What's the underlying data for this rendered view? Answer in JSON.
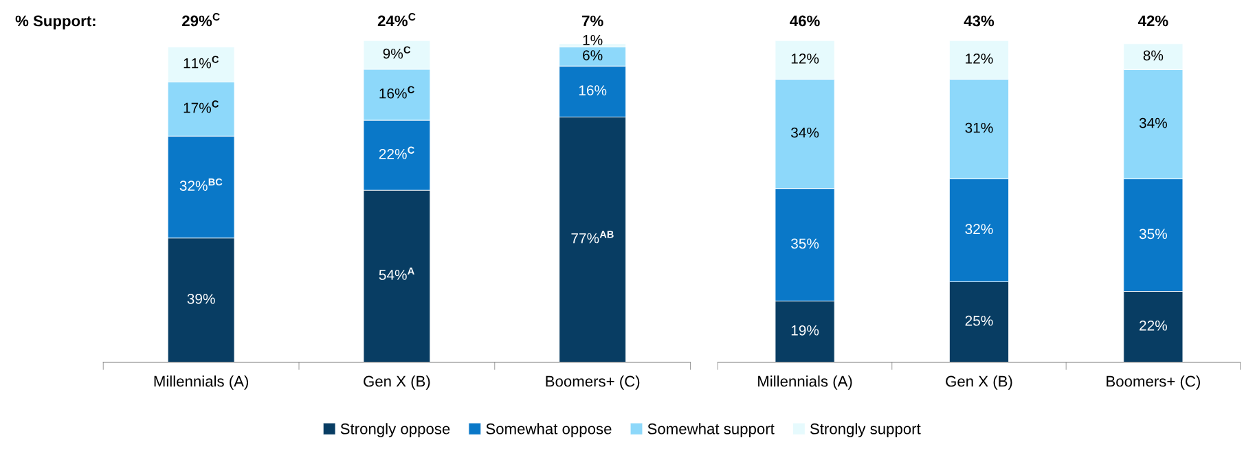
{
  "chart_data": [
    {
      "type": "bar",
      "stacked": true,
      "categories": [
        "Millennials (A)",
        "Gen X (B)",
        "Boomers+ (C)"
      ],
      "tick_labels": "x",
      "legend": "bottom",
      "grid": false,
      "annotations": [
        "% Support:",
        "29%$^{C}$",
        "24%$^{C}$",
        "7%"
      ],
      "series": [
        {
          "name": "Strongly oppose",
          "color": "#083d63",
          "values": [
            39,
            54,
            77
          ],
          "value_labels": [
            "39%",
            "54%$^{A}$",
            "77%$^{AB}$"
          ]
        },
        {
          "name": "Somewhat oppose",
          "color": "#0a78c8",
          "values": [
            32,
            22,
            16
          ],
          "value_labels": [
            "32%$^{BC}$",
            "22%$^{C}$",
            "16%"
          ]
        },
        {
          "name": "Somewhat support",
          "color": "#8dd8fa",
          "values": [
            17,
            16,
            6
          ],
          "value_labels": [
            "17%$^{C}$",
            "16%$^{C}$",
            "6%"
          ]
        },
        {
          "name": "Strongly support",
          "color": "#e6fafd",
          "values": [
            11,
            9,
            1
          ],
          "value_labels": [
            "11%$^{C}$",
            "9%$^{C}$",
            "1%"
          ]
        }
      ]
    },
    {
      "type": "bar",
      "stacked": true,
      "categories": [
        "Millennials (A)",
        "Gen X (B)",
        "Boomers+ (C)"
      ],
      "tick_labels": "x",
      "grid": false,
      "annotations": [
        "46%",
        "43%",
        "42%"
      ],
      "series": [
        {
          "color": "#083d63",
          "values": [
            19,
            25,
            22
          ],
          "value_labels": [
            "19%",
            "25%",
            "22%"
          ]
        },
        {
          "color": "#0a78c8",
          "values": [
            35,
            32,
            35
          ],
          "value_labels": [
            "35%",
            "32%",
            "35%"
          ]
        },
        {
          "color": "#8dd8fa",
          "values": [
            34,
            31,
            34
          ],
          "value_labels": [
            "34%",
            "31%",
            "34%"
          ]
        },
        {
          "color": "#e6fafd",
          "values": [
            12,
            12,
            8
          ],
          "value_labels": [
            "12%",
            "12%",
            "8%"
          ]
        }
      ]
    }
  ]
}
